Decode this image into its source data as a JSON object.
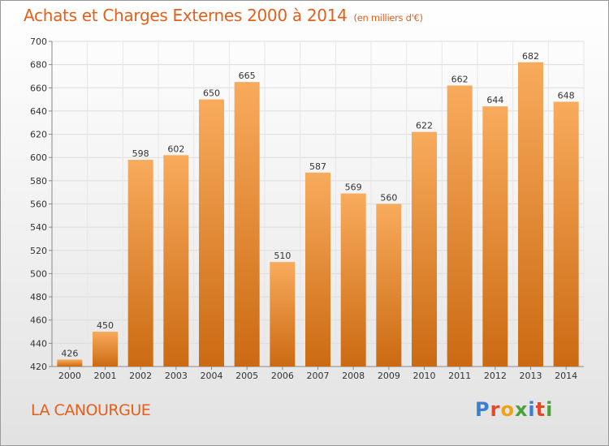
{
  "title": "Achats et Charges Externes 2000 à 2014",
  "subtitle": "(en milliers d'€)",
  "location": "LA CANOURGUE",
  "brand": {
    "letters": [
      {
        "ch": "P",
        "color": "#3a7fd0"
      },
      {
        "ch": "r",
        "color": "#e04a2a"
      },
      {
        "ch": "o",
        "color": "#f2a114"
      },
      {
        "ch": "x",
        "color": "#4aa33a"
      },
      {
        "ch": "i",
        "color": "#3a7fd0"
      },
      {
        "ch": "t",
        "color": "#e04a2a"
      },
      {
        "ch": "i",
        "color": "#4aa33a"
      }
    ]
  },
  "colors": {
    "bar_top": "#f8ab5c",
    "bar_bottom": "#cb6a12",
    "accent": "#e35f1b"
  },
  "chart_data": {
    "type": "bar",
    "categories": [
      "2000",
      "2001",
      "2002",
      "2003",
      "2004",
      "2005",
      "2006",
      "2007",
      "2008",
      "2009",
      "2010",
      "2011",
      "2012",
      "2013",
      "2014"
    ],
    "values": [
      426,
      450,
      598,
      602,
      650,
      665,
      510,
      587,
      569,
      560,
      622,
      662,
      644,
      682,
      648
    ],
    "title": "Achats et Charges Externes 2000 à 2014",
    "xlabel": "",
    "ylabel": "",
    "ylim": [
      420,
      700
    ],
    "yticks": [
      420,
      440,
      460,
      480,
      500,
      520,
      540,
      560,
      580,
      600,
      620,
      640,
      660,
      680,
      700
    ],
    "grid": true,
    "legend": "none"
  }
}
